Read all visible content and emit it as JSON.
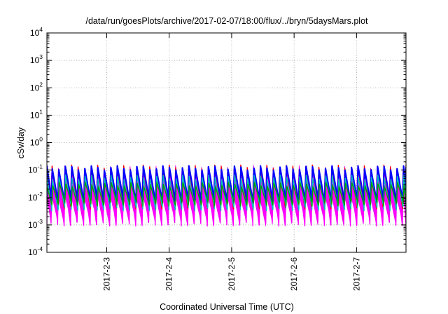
{
  "chart_data": {
    "type": "area",
    "title": "/data/run/goesPlots/archive/2017-02-07/18:00/flux/../bryn/5daysMars.plot",
    "xlabel": "Coordinated Universal Time (UTC)",
    "ylabel": "cSv/day",
    "yscale": "log",
    "ylim": [
      0.0001,
      10000
    ],
    "xlim": [
      "2017-02-02 01:00",
      "2017-02-07 19:00"
    ],
    "grid": true,
    "legend": "none",
    "y_ticks": [
      {
        "base": "10",
        "exp": "-4",
        "value": 0.0001
      },
      {
        "base": "10",
        "exp": "-3",
        "value": 0.001
      },
      {
        "base": "10",
        "exp": "-2",
        "value": 0.01
      },
      {
        "base": "10",
        "exp": "-1",
        "value": 0.1
      },
      {
        "base": "10",
        "exp": "0",
        "value": 1
      },
      {
        "base": "10",
        "exp": "1",
        "value": 10
      },
      {
        "base": "10",
        "exp": "2",
        "value": 100
      },
      {
        "base": "10",
        "exp": "3",
        "value": 1000
      },
      {
        "base": "10",
        "exp": "4",
        "value": 10000
      }
    ],
    "x_ticks": [
      {
        "label": "2017-2-3",
        "time": "2017-02-03 00:00"
      },
      {
        "label": "2017-2-4",
        "time": "2017-02-04 00:00"
      },
      {
        "label": "2017-2-5",
        "time": "2017-02-05 00:00"
      },
      {
        "label": "2017-2-6",
        "time": "2017-02-06 00:00"
      },
      {
        "label": "2017-2-7",
        "time": "2017-02-07 00:00"
      }
    ],
    "cycle_hours": 2.5,
    "band_low": [
      0.0012,
      0.0015,
      0.0011,
      0.0016,
      0.0013,
      0.001,
      0.0014,
      0.0017,
      0.0012,
      0.0009,
      0.0013,
      0.0015
    ],
    "band_high": [
      0.13,
      0.14,
      0.12,
      0.15,
      0.13,
      0.14,
      0.12,
      0.13,
      0.15,
      0.12,
      0.14,
      0.13
    ],
    "series": [
      {
        "color": "#ff00ff",
        "peak": 0.045,
        "trough": 0.0011
      },
      {
        "color": "#ff0000",
        "peak": 0.13,
        "trough": 0.0045
      },
      {
        "color": "#0000ff",
        "peak": 0.12,
        "trough": 0.008
      },
      {
        "color": "#00c0c0",
        "peak": 0.055,
        "trough": 0.004
      },
      {
        "color": "#00a000",
        "peak": 0.03,
        "trough": 0.006
      }
    ]
  }
}
